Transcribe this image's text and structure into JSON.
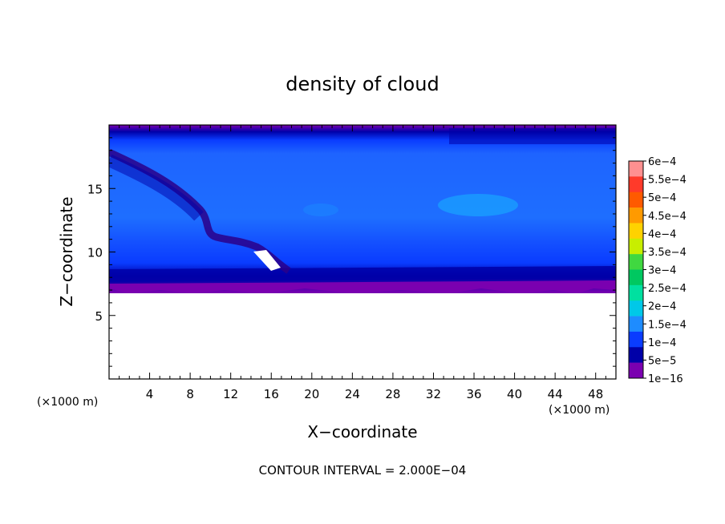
{
  "chart_data": {
    "type": "heatmap",
    "title": "density of cloud",
    "xlabel": "X−coordinate",
    "ylabel": "Z−coordinate",
    "x_unit_left": "(×1000 m)",
    "x_unit_right": "(×1000 m)",
    "xlim": [
      0,
      50
    ],
    "ylim": [
      0,
      20
    ],
    "x_ticks": [
      "4",
      "8",
      "12",
      "16",
      "20",
      "24",
      "28",
      "32",
      "36",
      "40",
      "44",
      "48"
    ],
    "y_ticks": [
      "5",
      "10",
      "15"
    ],
    "legend_position": "right",
    "colorbar": {
      "labels": [
        "6e−4",
        "5.5e−4",
        "5e−4",
        "4.5e−4",
        "4e−4",
        "3.5e−4",
        "3e−4",
        "2.5e−4",
        "2e−4",
        "1.5e−4",
        "1e−4",
        "5e−5",
        "1e−16"
      ],
      "colors": [
        "#ff9090",
        "#ff3a2a",
        "#ff5a00",
        "#ff9a00",
        "#ffd200",
        "#c8ee00",
        "#40d840",
        "#00c860",
        "#00e0a0",
        "#00c8e8",
        "#1e8cff",
        "#0a3cff",
        "#0000a8",
        "#7a00b0"
      ]
    },
    "footer": "CONTOUR INTERVAL = 2.000E−04"
  }
}
